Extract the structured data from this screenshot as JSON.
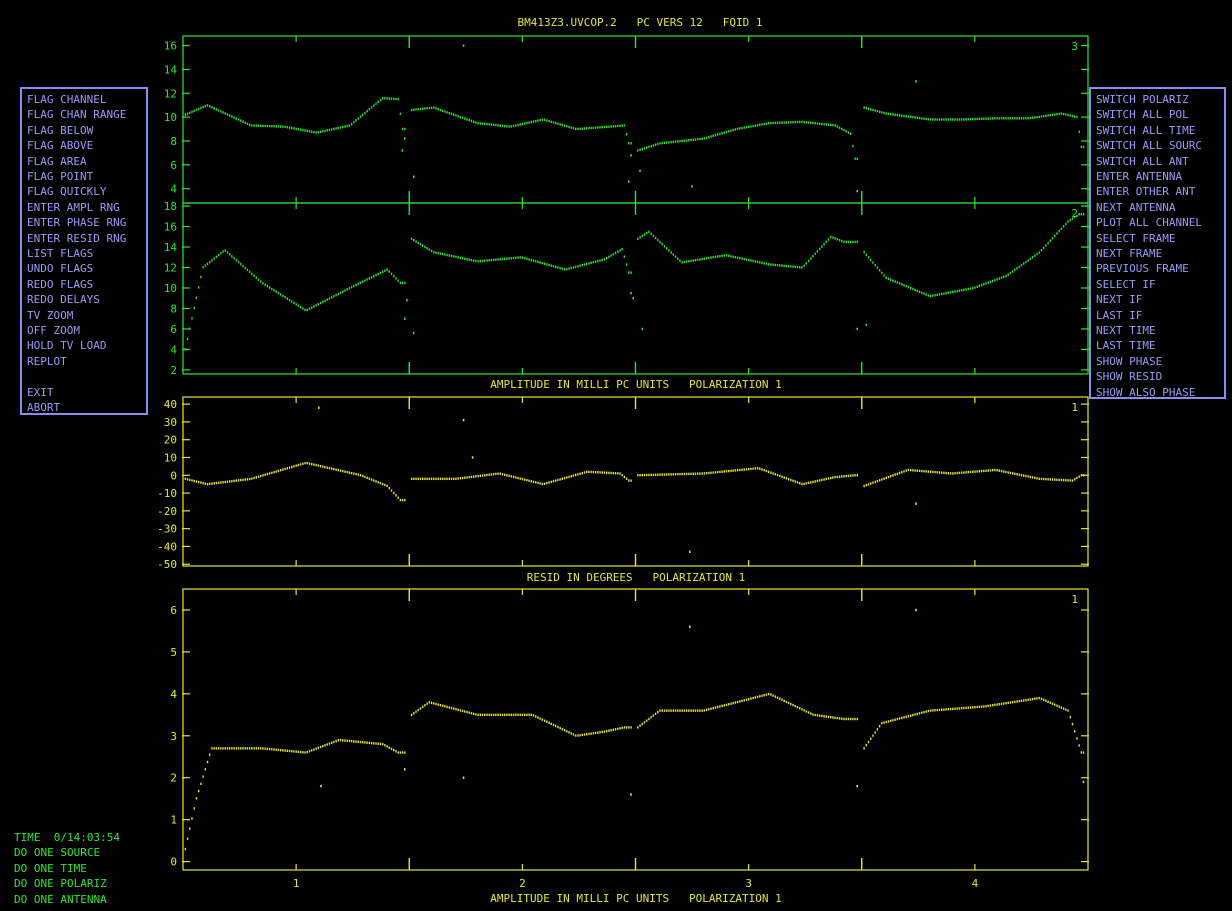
{
  "window_title": "BM413Z3.UVCOP.2   PC VERS 12   FQID 1",
  "colors": {
    "green": "#2ee62e",
    "yellow": "#e6e62e",
    "menu": "#9a9af5",
    "menu_border": "#8c8cf0",
    "background": "#000000"
  },
  "left_menu": [
    "FLAG CHANNEL",
    "FLAG CHAN RANGE",
    "FLAG BELOW",
    "FLAG ABOVE",
    "FLAG AREA",
    "FLAG POINT",
    "FLAG QUICKLY",
    "ENTER AMPL RNG",
    "ENTER PHASE RNG",
    "ENTER RESID RNG",
    "LIST FLAGS",
    "UNDO FLAGS",
    "REDO FLAGS",
    "REDO DELAYS",
    "TV ZOOM",
    "OFF ZOOM",
    "HOLD TV LOAD",
    "REPLOT",
    "",
    "EXIT",
    "ABORT"
  ],
  "right_menu": [
    "SWITCH POLARIZ",
    "SWITCH ALL POL",
    "SWITCH ALL TIME",
    "SWITCH ALL SOURC",
    "SWITCH ALL ANT",
    "ENTER ANTENNA",
    "ENTER OTHER ANT",
    "NEXT ANTENNA",
    "PLOT ALL CHANNEL",
    "SELECT FRAME",
    "NEXT FRAME",
    "PREVIOUS FRAME",
    "SELECT IF",
    "NEXT IF",
    "LAST IF",
    "NEXT TIME",
    "LAST TIME",
    "SHOW PHASE",
    "SHOW RESID",
    "SHOW ALSO PHASE"
  ],
  "status": {
    "time": "TIME  0/14:03:54",
    "lines": [
      "DO ONE SOURCE",
      "DO ONE TIME",
      "DO ONE POLARIZ",
      "DO ONE ANTENNA"
    ]
  },
  "panel_titles": {
    "resid_degrees": "AMPLITUDE IN MILLI PC UNITS   POLARIZATION 1",
    "amplitude": "RESID IN DEGREES   POLARIZATION 1",
    "bottom_axis": "AMPLITUDE IN MILLI PC UNITS   POLARIZATION 1"
  },
  "chart_data": [
    {
      "type": "scatter",
      "panel": "top-upper",
      "color": "green",
      "corner_label": "3",
      "x": [
        1,
        2,
        3,
        4
      ],
      "xlim": [
        0.5,
        4.5
      ],
      "ylim": [
        2.8,
        16.8
      ],
      "yticks": [
        4,
        6,
        8,
        10,
        12,
        14,
        16
      ],
      "channel_profiles": [
        [
          [
            0.0,
            10.2
          ],
          [
            0.1,
            11.0
          ],
          [
            0.3,
            9.3
          ],
          [
            0.45,
            9.2
          ],
          [
            0.6,
            8.7
          ],
          [
            0.75,
            9.3
          ],
          [
            0.9,
            11.6
          ],
          [
            0.97,
            11.5
          ],
          [
            0.99,
            9.0
          ]
        ],
        [
          [
            0.0,
            10.6
          ],
          [
            0.1,
            10.8
          ],
          [
            0.3,
            9.5
          ],
          [
            0.45,
            9.2
          ],
          [
            0.6,
            9.8
          ],
          [
            0.75,
            9.0
          ],
          [
            0.9,
            9.2
          ],
          [
            0.97,
            9.3
          ],
          [
            0.99,
            7.8
          ]
        ],
        [
          [
            0.0,
            7.2
          ],
          [
            0.1,
            7.8
          ],
          [
            0.3,
            8.2
          ],
          [
            0.45,
            9.0
          ],
          [
            0.6,
            9.5
          ],
          [
            0.75,
            9.6
          ],
          [
            0.9,
            9.3
          ],
          [
            0.97,
            8.6
          ],
          [
            0.99,
            6.5
          ]
        ],
        [
          [
            0.0,
            10.8
          ],
          [
            0.1,
            10.3
          ],
          [
            0.3,
            9.8
          ],
          [
            0.45,
            9.8
          ],
          [
            0.6,
            9.9
          ],
          [
            0.75,
            9.9
          ],
          [
            0.9,
            10.3
          ],
          [
            0.97,
            10.0
          ],
          [
            0.99,
            7.5
          ]
        ]
      ],
      "outliers": [
        [
          1.74,
          16.0
        ],
        [
          2.75,
          4.2
        ],
        [
          3.74,
          13.0
        ],
        [
          1.48,
          8.2
        ],
        [
          1.47,
          7.2
        ],
        [
          2.48,
          6.8
        ],
        [
          2.47,
          4.6
        ],
        [
          3.48,
          3.8
        ],
        [
          1.52,
          5.0
        ],
        [
          2.52,
          5.5
        ]
      ]
    },
    {
      "type": "scatter",
      "panel": "top-lower",
      "color": "green",
      "corner_label": "2",
      "x": [
        1,
        2,
        3,
        4
      ],
      "xlim": [
        0.5,
        4.5
      ],
      "ylim": [
        1.6,
        18.3
      ],
      "yticks": [
        2,
        4,
        6,
        8,
        10,
        12,
        14,
        16,
        18
      ],
      "channel_profiles": [
        [
          [
            0.0,
            4.0
          ],
          [
            0.08,
            12.0
          ],
          [
            0.18,
            13.7
          ],
          [
            0.35,
            10.5
          ],
          [
            0.55,
            7.8
          ],
          [
            0.75,
            10.0
          ],
          [
            0.92,
            11.8
          ],
          [
            0.98,
            10.5
          ]
        ],
        [
          [
            0.0,
            14.8
          ],
          [
            0.1,
            13.5
          ],
          [
            0.3,
            12.6
          ],
          [
            0.5,
            13.0
          ],
          [
            0.7,
            11.8
          ],
          [
            0.88,
            12.8
          ],
          [
            0.96,
            13.8
          ],
          [
            0.99,
            11.5
          ]
        ],
        [
          [
            0.0,
            14.8
          ],
          [
            0.05,
            15.5
          ],
          [
            0.2,
            12.5
          ],
          [
            0.4,
            13.2
          ],
          [
            0.6,
            12.3
          ],
          [
            0.75,
            12.0
          ],
          [
            0.88,
            15.0
          ],
          [
            0.94,
            14.5
          ]
        ],
        [
          [
            0.0,
            13.5
          ],
          [
            0.1,
            11.0
          ],
          [
            0.3,
            9.2
          ],
          [
            0.5,
            10.0
          ],
          [
            0.65,
            11.2
          ],
          [
            0.8,
            13.5
          ],
          [
            0.93,
            16.5
          ],
          [
            0.98,
            17.2
          ]
        ]
      ],
      "outliers": [
        [
          1.48,
          7.0
        ],
        [
          2.49,
          9.0
        ],
        [
          3.48,
          6.0
        ],
        [
          1.52,
          5.6
        ],
        [
          2.53,
          6.0
        ],
        [
          3.52,
          6.4
        ],
        [
          2.48,
          9.5
        ],
        [
          1.49,
          8.8
        ]
      ]
    },
    {
      "type": "scatter",
      "panel": "middle",
      "color": "yellow",
      "corner_label": "1",
      "x": [
        1,
        2,
        3,
        4
      ],
      "xlim": [
        0.5,
        4.5
      ],
      "ylim": [
        -51,
        44
      ],
      "yticks": [
        40,
        30,
        20,
        10,
        0,
        -10,
        -20,
        -30,
        -40,
        -50
      ],
      "channel_profiles": [
        [
          [
            0.0,
            -2.0
          ],
          [
            0.1,
            -5.0
          ],
          [
            0.3,
            -2.0
          ],
          [
            0.55,
            7.0
          ],
          [
            0.8,
            0.0
          ],
          [
            0.92,
            -6.0
          ],
          [
            0.98,
            -14.0
          ]
        ],
        [
          [
            0.0,
            -2.0
          ],
          [
            0.2,
            -2.0
          ],
          [
            0.4,
            1.0
          ],
          [
            0.6,
            -5.0
          ],
          [
            0.8,
            2.0
          ],
          [
            0.95,
            1.0
          ],
          [
            0.99,
            -3.0
          ]
        ],
        [
          [
            0.0,
            0.0
          ],
          [
            0.3,
            1.0
          ],
          [
            0.55,
            4.0
          ],
          [
            0.75,
            -5.0
          ],
          [
            0.9,
            -1.0
          ],
          [
            0.99,
            0.0
          ]
        ],
        [
          [
            0.0,
            -6.0
          ],
          [
            0.2,
            3.0
          ],
          [
            0.4,
            1.0
          ],
          [
            0.6,
            3.0
          ],
          [
            0.8,
            -2.0
          ],
          [
            0.95,
            -3.0
          ],
          [
            0.99,
            0.0
          ]
        ]
      ],
      "outliers": [
        [
          1.1,
          38.0
        ],
        [
          1.74,
          31.0
        ],
        [
          1.78,
          10.0
        ],
        [
          2.74,
          -43.0
        ],
        [
          3.74,
          -16.0
        ]
      ]
    },
    {
      "type": "scatter",
      "panel": "bottom",
      "color": "yellow",
      "corner_label": "1",
      "x": [
        1,
        2,
        3,
        4
      ],
      "xlim": [
        0.5,
        4.5
      ],
      "ylim": [
        -0.2,
        6.5
      ],
      "yticks": [
        0,
        1,
        2,
        3,
        4,
        5,
        6
      ],
      "xlabel": "AMPLITUDE IN MILLI PC UNITS   POLARIZATION 1",
      "channel_profiles": [
        [
          [
            0.0,
            0.3
          ],
          [
            0.05,
            1.5
          ],
          [
            0.12,
            2.7
          ],
          [
            0.35,
            2.7
          ],
          [
            0.55,
            2.6
          ],
          [
            0.7,
            2.9
          ],
          [
            0.9,
            2.8
          ],
          [
            0.97,
            2.6
          ]
        ],
        [
          [
            0.0,
            3.5
          ],
          [
            0.08,
            3.8
          ],
          [
            0.3,
            3.5
          ],
          [
            0.55,
            3.5
          ],
          [
            0.75,
            3.0
          ],
          [
            0.88,
            3.1
          ],
          [
            0.97,
            3.2
          ]
        ],
        [
          [
            0.0,
            3.2
          ],
          [
            0.1,
            3.6
          ],
          [
            0.3,
            3.6
          ],
          [
            0.6,
            4.0
          ],
          [
            0.8,
            3.5
          ],
          [
            0.94,
            3.4
          ]
        ],
        [
          [
            0.0,
            2.7
          ],
          [
            0.08,
            3.3
          ],
          [
            0.3,
            3.6
          ],
          [
            0.55,
            3.7
          ],
          [
            0.8,
            3.9
          ],
          [
            0.93,
            3.6
          ],
          [
            0.99,
            2.6
          ]
        ]
      ],
      "outliers": [
        [
          1.11,
          1.8
        ],
        [
          1.74,
          2.0
        ],
        [
          2.74,
          5.6
        ],
        [
          3.74,
          6.0
        ],
        [
          1.48,
          2.2
        ],
        [
          2.48,
          1.6
        ],
        [
          3.48,
          1.8
        ],
        [
          4.48,
          1.9
        ]
      ]
    }
  ]
}
